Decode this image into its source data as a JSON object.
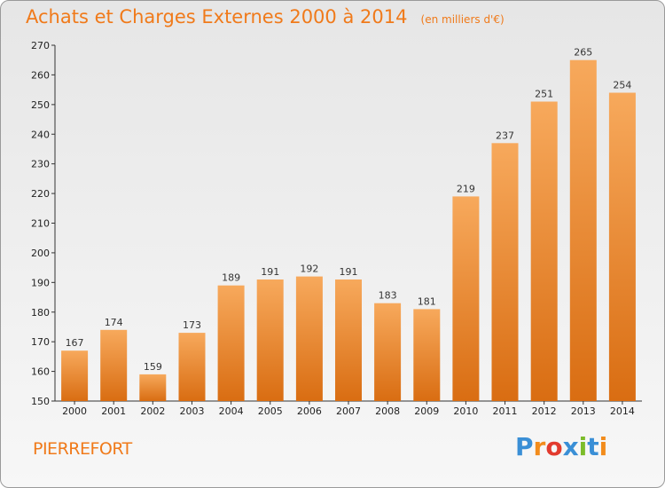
{
  "title": "Achats et Charges Externes 2000 à 2014",
  "subtitle": "(en milliers d'€)",
  "commune": "PIERREFORT",
  "logo": {
    "text": "Proxiti",
    "letters": [
      {
        "ch": "P",
        "color": "#3a8fd6"
      },
      {
        "ch": "r",
        "color": "#f28c1c"
      },
      {
        "ch": "o",
        "color": "#e23b2e"
      },
      {
        "ch": "x",
        "color": "#3a8fd6"
      },
      {
        "ch": "i",
        "color": "#7cbc2a"
      },
      {
        "ch": "t",
        "color": "#3a8fd6"
      },
      {
        "ch": "i",
        "color": "#f28c1c"
      }
    ]
  },
  "colors": {
    "bar_top": "#f7a95c",
    "bar_bottom": "#d96d12",
    "accent": "#f07a1a"
  },
  "chart_data": {
    "type": "bar",
    "title": "Achats et Charges Externes 2000 à 2014",
    "subtitle": "(en milliers d'€)",
    "xlabel": "",
    "ylabel": "",
    "categories": [
      "2000",
      "2001",
      "2002",
      "2003",
      "2004",
      "2005",
      "2006",
      "2007",
      "2008",
      "2009",
      "2010",
      "2011",
      "2012",
      "2013",
      "2014"
    ],
    "values": [
      167,
      174,
      159,
      173,
      189,
      191,
      192,
      191,
      183,
      181,
      219,
      237,
      251,
      265,
      254
    ],
    "ylim": [
      150,
      270
    ],
    "yticks": [
      150,
      160,
      170,
      180,
      190,
      200,
      210,
      220,
      230,
      240,
      250,
      260,
      270
    ],
    "grid": false,
    "legend": "none"
  }
}
